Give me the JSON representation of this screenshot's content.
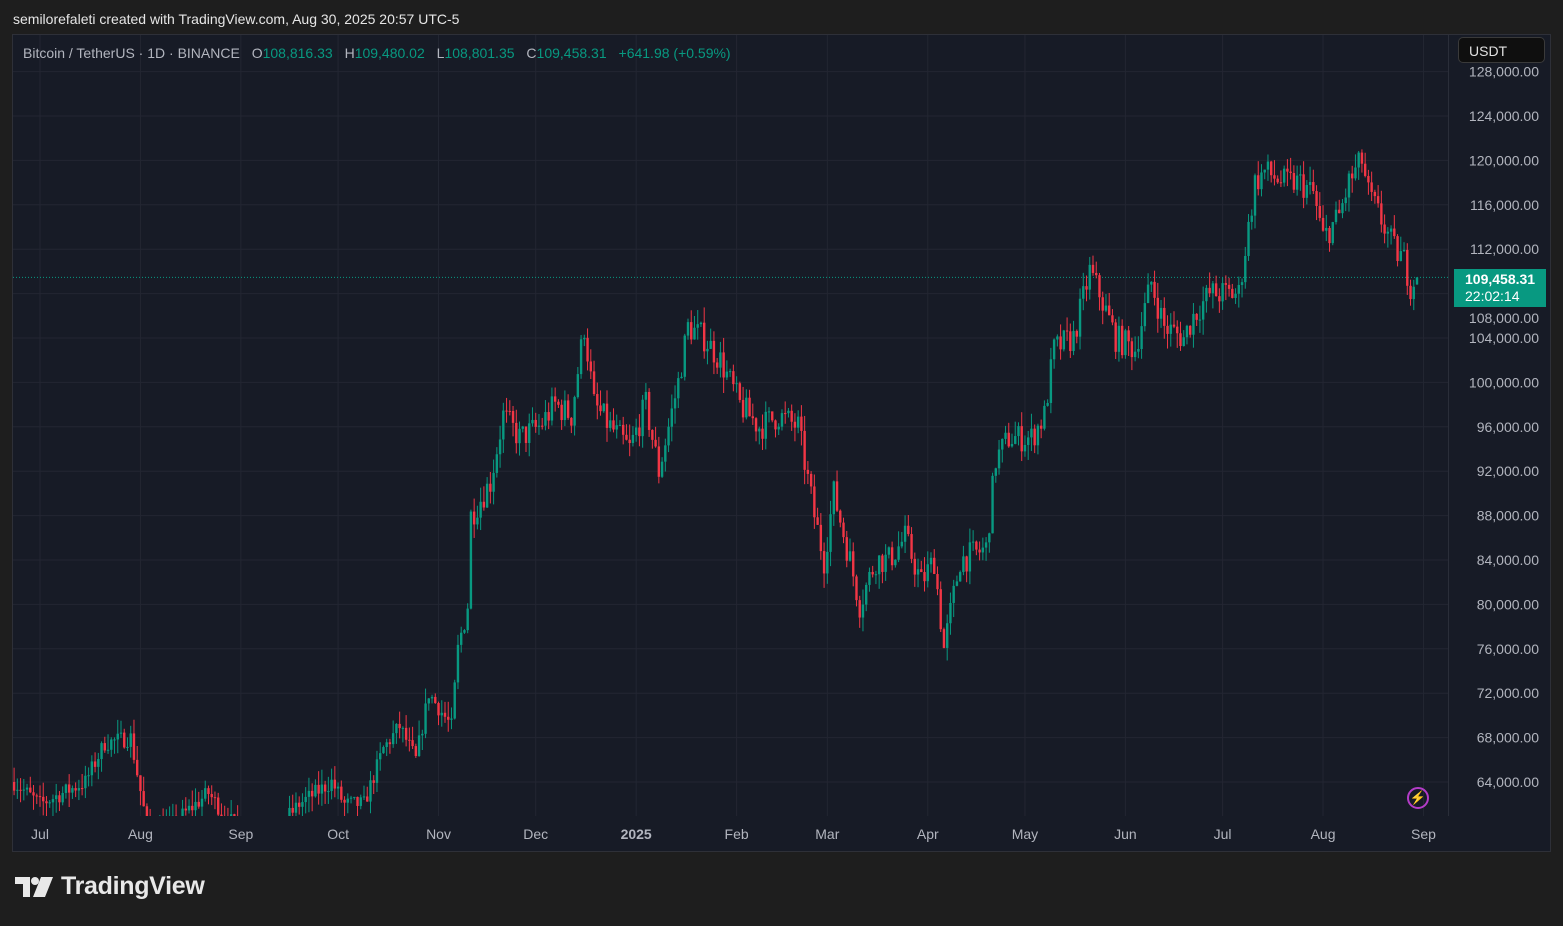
{
  "credit": "semilorefaleti created with TradingView.com, Aug 30, 2025 20:57 UTC-5",
  "legend": {
    "symbol": "Bitcoin / TetherUS · 1D · BINANCE",
    "o_label": "O",
    "o": "108,816.33",
    "h_label": "H",
    "h": "109,480.02",
    "l_label": "L",
    "l": "108,801.35",
    "c_label": "C",
    "c": "109,458.31",
    "change": "+641.98 (+0.59%)"
  },
  "currency_button": "USDT",
  "last_price": {
    "price": "109,458.31",
    "countdown": "22:02:14"
  },
  "logo_text": "TradingView",
  "colors": {
    "up": "#089981",
    "down": "#f23645",
    "bg": "#171b26",
    "grid": "#232632"
  },
  "chart_data": {
    "type": "candlestick",
    "title": "Bitcoin / TetherUS · 1D · BINANCE",
    "ylim": [
      61000,
      129500
    ],
    "y_ticks": [
      64000,
      68000,
      72000,
      76000,
      80000,
      84000,
      88000,
      92000,
      96000,
      100000,
      104000,
      108000,
      112000,
      116000,
      120000,
      124000,
      128000
    ],
    "y_tick_labels": [
      "64,000.00",
      "68,000.00",
      "72,000.00",
      "76,000.00",
      "80,000.00",
      "84,000.00",
      "88,000.00",
      "92,000.00",
      "96,000.00",
      "100,000.00",
      "104,000.00",
      "108,000.00",
      "112,000.00",
      "116,000.00",
      "120,000.00",
      "124,000.00",
      "128,000.00"
    ],
    "x_ticks": [
      {
        "day": 0,
        "label": "Jul"
      },
      {
        "day": 31,
        "label": "Aug"
      },
      {
        "day": 62,
        "label": "Sep"
      },
      {
        "day": 92,
        "label": "Oct"
      },
      {
        "day": 123,
        "label": "Nov"
      },
      {
        "day": 153,
        "label": "Dec"
      },
      {
        "day": 184,
        "label": "2025",
        "bold": true
      },
      {
        "day": 215,
        "label": "Feb"
      },
      {
        "day": 243,
        "label": "Mar"
      },
      {
        "day": 274,
        "label": "Apr"
      },
      {
        "day": 304,
        "label": "May"
      },
      {
        "day": 335,
        "label": "Jun"
      },
      {
        "day": 365,
        "label": "Jul"
      },
      {
        "day": 396,
        "label": "Aug"
      },
      {
        "day": 427,
        "label": "Sep"
      }
    ],
    "close_path_note_units": "day index from 2024-07-01, price in USDT thousands",
    "close_path": [
      [
        -8,
        64
      ],
      [
        0,
        62
      ],
      [
        14,
        64
      ],
      [
        20,
        67.5
      ],
      [
        28,
        68
      ],
      [
        33,
        60
      ],
      [
        40,
        60
      ],
      [
        52,
        63
      ],
      [
        57,
        61
      ],
      [
        68,
        58
      ],
      [
        80,
        62
      ],
      [
        90,
        64
      ],
      [
        94,
        62
      ],
      [
        100,
        62
      ],
      [
        106,
        67
      ],
      [
        111,
        69
      ],
      [
        116,
        66
      ],
      [
        120,
        72
      ],
      [
        127,
        69
      ],
      [
        129,
        76
      ],
      [
        132,
        80
      ],
      [
        133,
        88
      ],
      [
        139,
        91
      ],
      [
        143,
        97
      ],
      [
        148,
        95
      ],
      [
        154,
        96
      ],
      [
        159,
        98
      ],
      [
        164,
        97
      ],
      [
        168,
        105
      ],
      [
        171,
        98
      ],
      [
        176,
        96
      ],
      [
        182,
        94
      ],
      [
        187,
        98
      ],
      [
        191,
        92
      ],
      [
        197,
        100
      ],
      [
        200,
        105
      ],
      [
        205,
        104
      ],
      [
        210,
        102
      ],
      [
        216,
        98
      ],
      [
        222,
        96
      ],
      [
        228,
        97
      ],
      [
        234,
        96
      ],
      [
        239,
        88
      ],
      [
        242,
        84
      ],
      [
        245,
        90
      ],
      [
        250,
        84
      ],
      [
        253,
        80
      ],
      [
        258,
        84
      ],
      [
        262,
        84
      ],
      [
        267,
        86
      ],
      [
        272,
        82
      ],
      [
        276,
        84
      ],
      [
        279,
        76
      ],
      [
        284,
        84
      ],
      [
        292,
        85
      ],
      [
        295,
        93
      ],
      [
        299,
        95
      ],
      [
        306,
        95
      ],
      [
        310,
        97
      ],
      [
        313,
        103
      ],
      [
        319,
        104
      ],
      [
        324,
        110
      ],
      [
        327,
        108
      ],
      [
        332,
        104
      ],
      [
        338,
        103
      ],
      [
        343,
        109
      ],
      [
        347,
        105
      ],
      [
        353,
        104
      ],
      [
        356,
        106
      ],
      [
        361,
        108
      ],
      [
        366,
        108
      ],
      [
        370,
        108
      ],
      [
        375,
        118
      ],
      [
        378,
        119
      ],
      [
        384,
        118
      ],
      [
        389,
        118
      ],
      [
        393,
        117
      ],
      [
        396,
        113
      ],
      [
        401,
        115
      ],
      [
        404,
        118
      ],
      [
        408,
        120
      ],
      [
        410,
        117
      ],
      [
        415,
        114
      ],
      [
        418,
        112
      ],
      [
        421,
        111
      ],
      [
        423,
        108.8
      ],
      [
        425,
        109.458
      ]
    ],
    "last_candle": {
      "open": 108816.33,
      "high": 109480.02,
      "low": 108801.35,
      "close": 109458.31
    }
  }
}
